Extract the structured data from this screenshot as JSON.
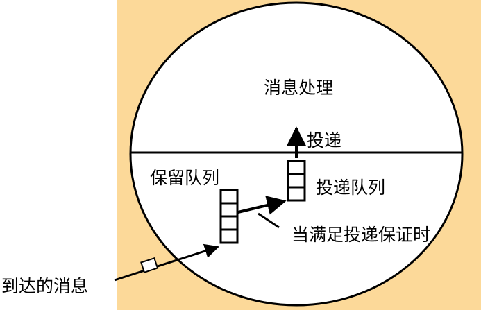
{
  "diagram": {
    "colors": {
      "panel": "#fcd999",
      "ellipse_fill": "#ffffff",
      "stroke": "#000000"
    },
    "labels": {
      "processing": "消息处理",
      "delivery": "投递",
      "hold_queue": "保留队列",
      "delivery_queue": "投递队列",
      "condition": "当满足投递保证时",
      "arriving": "到达的消息"
    },
    "hold_queue_cells": 4,
    "delivery_queue_cells": 3
  }
}
